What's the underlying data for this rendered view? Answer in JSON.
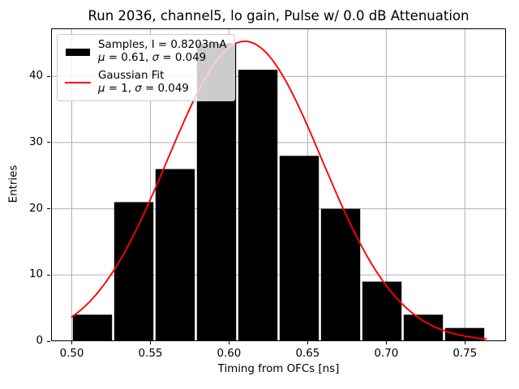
{
  "chart_data": {
    "type": "bar",
    "subtype": "histogram_with_gaussian_fit",
    "title": "Run 2036, channel5, lo gain, Pulse w/ 0.0 dB Attenuation",
    "xlabel": "Timing from OFCs [ns]",
    "ylabel": "Entries",
    "xlim": [
      0.48685,
      0.77615
    ],
    "ylim": [
      0,
      47.25
    ],
    "grid": true,
    "legend_position": "upper left",
    "colors": {
      "bars": "#000000",
      "fit_line": "#ff0000",
      "grid": "#b0b0b0",
      "axes": "#000000",
      "background": "#ffffff"
    },
    "xticks": [
      {
        "v": 0.5,
        "label": "0.50"
      },
      {
        "v": 0.55,
        "label": "0.55"
      },
      {
        "v": 0.6,
        "label": "0.60"
      },
      {
        "v": 0.65,
        "label": "0.65"
      },
      {
        "v": 0.7,
        "label": "0.70"
      },
      {
        "v": 0.75,
        "label": "0.75"
      }
    ],
    "yticks": [
      {
        "v": 0,
        "label": "0"
      },
      {
        "v": 10,
        "label": "10"
      },
      {
        "v": 20,
        "label": "20"
      },
      {
        "v": 30,
        "label": "30"
      },
      {
        "v": 40,
        "label": "40"
      }
    ],
    "histogram": {
      "bin_start": 0.5,
      "bin_width": 0.0263,
      "counts": [
        4,
        21,
        26,
        45,
        41,
        28,
        20,
        9,
        4,
        2
      ]
    },
    "gaussian_fit": {
      "mu": 0.61,
      "sigma": 0.049,
      "amplitude": 45.3,
      "x_start": 0.5,
      "x_end": 0.7635
    },
    "legend": {
      "entries": [
        {
          "label": "Samples, I = 0.8203mA",
          "mu_sym": "μ",
          "mu_text": " = 0.61, ",
          "sigma_sym": "σ",
          "sigma_text": " = 0.049"
        },
        {
          "label": "Gaussian Fit",
          "mu_sym": "μ",
          "mu_text": " = 1, ",
          "sigma_sym": "σ",
          "sigma_text": " = 0.049"
        }
      ]
    }
  }
}
